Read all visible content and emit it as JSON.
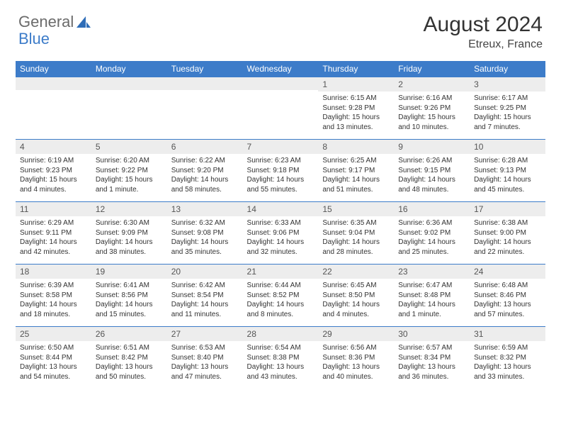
{
  "logo": {
    "text1": "General",
    "text2": "Blue"
  },
  "title": "August 2024",
  "location": "Etreux, France",
  "day_headers": [
    "Sunday",
    "Monday",
    "Tuesday",
    "Wednesday",
    "Thursday",
    "Friday",
    "Saturday"
  ],
  "colors": {
    "header_bg": "#3d7cc9",
    "header_text": "#ffffff",
    "daynum_bg": "#ededed",
    "border": "#3d7cc9",
    "logo_blue": "#3d7cc9",
    "logo_gray": "#6b6b6b"
  },
  "weeks": [
    [
      {
        "n": "",
        "sr": "",
        "ss": "",
        "dl": ""
      },
      {
        "n": "",
        "sr": "",
        "ss": "",
        "dl": ""
      },
      {
        "n": "",
        "sr": "",
        "ss": "",
        "dl": ""
      },
      {
        "n": "",
        "sr": "",
        "ss": "",
        "dl": ""
      },
      {
        "n": "1",
        "sr": "Sunrise: 6:15 AM",
        "ss": "Sunset: 9:28 PM",
        "dl": "Daylight: 15 hours and 13 minutes."
      },
      {
        "n": "2",
        "sr": "Sunrise: 6:16 AM",
        "ss": "Sunset: 9:26 PM",
        "dl": "Daylight: 15 hours and 10 minutes."
      },
      {
        "n": "3",
        "sr": "Sunrise: 6:17 AM",
        "ss": "Sunset: 9:25 PM",
        "dl": "Daylight: 15 hours and 7 minutes."
      }
    ],
    [
      {
        "n": "4",
        "sr": "Sunrise: 6:19 AM",
        "ss": "Sunset: 9:23 PM",
        "dl": "Daylight: 15 hours and 4 minutes."
      },
      {
        "n": "5",
        "sr": "Sunrise: 6:20 AM",
        "ss": "Sunset: 9:22 PM",
        "dl": "Daylight: 15 hours and 1 minute."
      },
      {
        "n": "6",
        "sr": "Sunrise: 6:22 AM",
        "ss": "Sunset: 9:20 PM",
        "dl": "Daylight: 14 hours and 58 minutes."
      },
      {
        "n": "7",
        "sr": "Sunrise: 6:23 AM",
        "ss": "Sunset: 9:18 PM",
        "dl": "Daylight: 14 hours and 55 minutes."
      },
      {
        "n": "8",
        "sr": "Sunrise: 6:25 AM",
        "ss": "Sunset: 9:17 PM",
        "dl": "Daylight: 14 hours and 51 minutes."
      },
      {
        "n": "9",
        "sr": "Sunrise: 6:26 AM",
        "ss": "Sunset: 9:15 PM",
        "dl": "Daylight: 14 hours and 48 minutes."
      },
      {
        "n": "10",
        "sr": "Sunrise: 6:28 AM",
        "ss": "Sunset: 9:13 PM",
        "dl": "Daylight: 14 hours and 45 minutes."
      }
    ],
    [
      {
        "n": "11",
        "sr": "Sunrise: 6:29 AM",
        "ss": "Sunset: 9:11 PM",
        "dl": "Daylight: 14 hours and 42 minutes."
      },
      {
        "n": "12",
        "sr": "Sunrise: 6:30 AM",
        "ss": "Sunset: 9:09 PM",
        "dl": "Daylight: 14 hours and 38 minutes."
      },
      {
        "n": "13",
        "sr": "Sunrise: 6:32 AM",
        "ss": "Sunset: 9:08 PM",
        "dl": "Daylight: 14 hours and 35 minutes."
      },
      {
        "n": "14",
        "sr": "Sunrise: 6:33 AM",
        "ss": "Sunset: 9:06 PM",
        "dl": "Daylight: 14 hours and 32 minutes."
      },
      {
        "n": "15",
        "sr": "Sunrise: 6:35 AM",
        "ss": "Sunset: 9:04 PM",
        "dl": "Daylight: 14 hours and 28 minutes."
      },
      {
        "n": "16",
        "sr": "Sunrise: 6:36 AM",
        "ss": "Sunset: 9:02 PM",
        "dl": "Daylight: 14 hours and 25 minutes."
      },
      {
        "n": "17",
        "sr": "Sunrise: 6:38 AM",
        "ss": "Sunset: 9:00 PM",
        "dl": "Daylight: 14 hours and 22 minutes."
      }
    ],
    [
      {
        "n": "18",
        "sr": "Sunrise: 6:39 AM",
        "ss": "Sunset: 8:58 PM",
        "dl": "Daylight: 14 hours and 18 minutes."
      },
      {
        "n": "19",
        "sr": "Sunrise: 6:41 AM",
        "ss": "Sunset: 8:56 PM",
        "dl": "Daylight: 14 hours and 15 minutes."
      },
      {
        "n": "20",
        "sr": "Sunrise: 6:42 AM",
        "ss": "Sunset: 8:54 PM",
        "dl": "Daylight: 14 hours and 11 minutes."
      },
      {
        "n": "21",
        "sr": "Sunrise: 6:44 AM",
        "ss": "Sunset: 8:52 PM",
        "dl": "Daylight: 14 hours and 8 minutes."
      },
      {
        "n": "22",
        "sr": "Sunrise: 6:45 AM",
        "ss": "Sunset: 8:50 PM",
        "dl": "Daylight: 14 hours and 4 minutes."
      },
      {
        "n": "23",
        "sr": "Sunrise: 6:47 AM",
        "ss": "Sunset: 8:48 PM",
        "dl": "Daylight: 14 hours and 1 minute."
      },
      {
        "n": "24",
        "sr": "Sunrise: 6:48 AM",
        "ss": "Sunset: 8:46 PM",
        "dl": "Daylight: 13 hours and 57 minutes."
      }
    ],
    [
      {
        "n": "25",
        "sr": "Sunrise: 6:50 AM",
        "ss": "Sunset: 8:44 PM",
        "dl": "Daylight: 13 hours and 54 minutes."
      },
      {
        "n": "26",
        "sr": "Sunrise: 6:51 AM",
        "ss": "Sunset: 8:42 PM",
        "dl": "Daylight: 13 hours and 50 minutes."
      },
      {
        "n": "27",
        "sr": "Sunrise: 6:53 AM",
        "ss": "Sunset: 8:40 PM",
        "dl": "Daylight: 13 hours and 47 minutes."
      },
      {
        "n": "28",
        "sr": "Sunrise: 6:54 AM",
        "ss": "Sunset: 8:38 PM",
        "dl": "Daylight: 13 hours and 43 minutes."
      },
      {
        "n": "29",
        "sr": "Sunrise: 6:56 AM",
        "ss": "Sunset: 8:36 PM",
        "dl": "Daylight: 13 hours and 40 minutes."
      },
      {
        "n": "30",
        "sr": "Sunrise: 6:57 AM",
        "ss": "Sunset: 8:34 PM",
        "dl": "Daylight: 13 hours and 36 minutes."
      },
      {
        "n": "31",
        "sr": "Sunrise: 6:59 AM",
        "ss": "Sunset: 8:32 PM",
        "dl": "Daylight: 13 hours and 33 minutes."
      }
    ]
  ]
}
